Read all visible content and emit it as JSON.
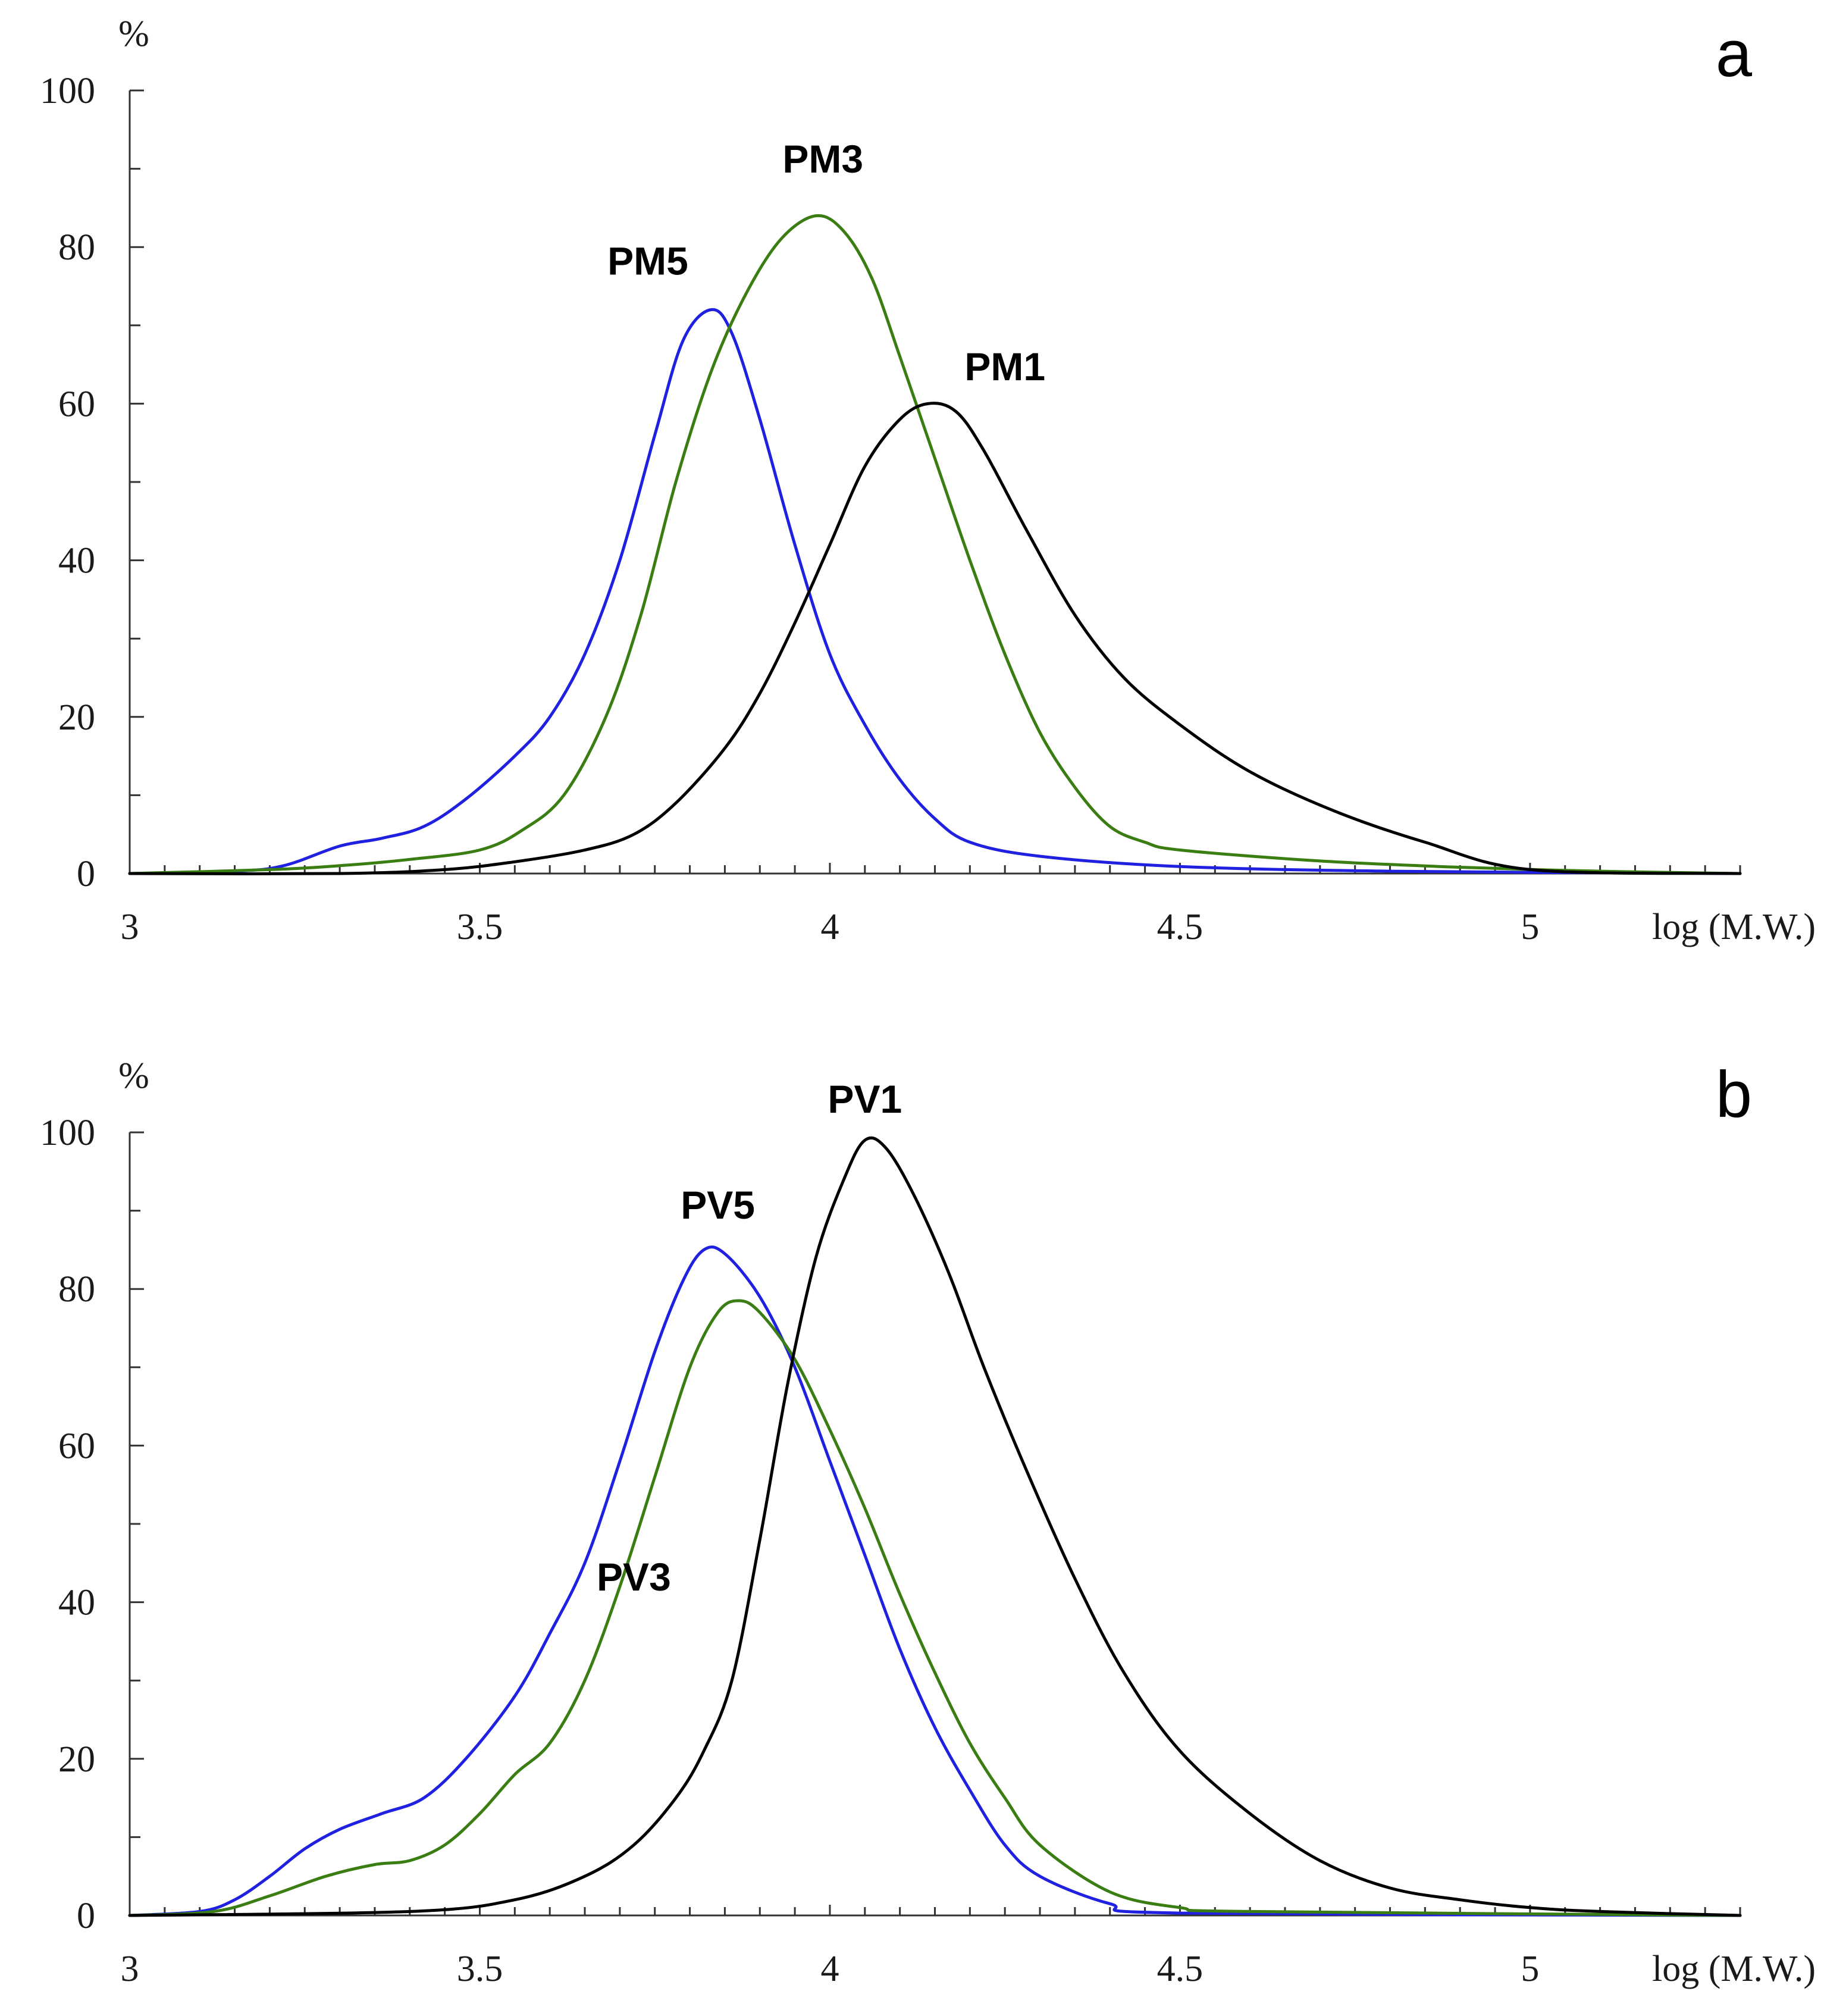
{
  "chart_data": [
    {
      "type": "line",
      "panel": "a",
      "xlabel": "log (M.W.)",
      "ylabel": "%",
      "xlim": [
        3,
        5.3
      ],
      "ylim": [
        0,
        100
      ],
      "x_ticks": [
        "3",
        "3.5",
        "4",
        "4.5",
        "5"
      ],
      "y_ticks": [
        "0",
        "20",
        "40",
        "60",
        "80",
        "100"
      ],
      "series": [
        {
          "name": "PM5",
          "color": "#2020e0",
          "label_at": [
            3.74,
            76.5
          ],
          "points": [
            [
              3.0,
              0
            ],
            [
              3.15,
              0.3
            ],
            [
              3.22,
              1
            ],
            [
              3.3,
              3.5
            ],
            [
              3.36,
              4.5
            ],
            [
              3.42,
              6
            ],
            [
              3.48,
              9.5
            ],
            [
              3.55,
              15
            ],
            [
              3.6,
              20
            ],
            [
              3.65,
              28
            ],
            [
              3.7,
              40
            ],
            [
              3.75,
              56
            ],
            [
              3.79,
              68
            ],
            [
              3.83,
              72
            ],
            [
              3.86,
              69
            ],
            [
              3.9,
              58
            ],
            [
              3.95,
              42
            ],
            [
              4.0,
              28
            ],
            [
              4.05,
              19
            ],
            [
              4.1,
              12
            ],
            [
              4.15,
              7
            ],
            [
              4.2,
              4
            ],
            [
              4.3,
              2.2
            ],
            [
              4.5,
              0.9
            ],
            [
              4.8,
              0.3
            ],
            [
              5.3,
              0
            ]
          ]
        },
        {
          "name": "PM3",
          "color": "#3a7d12",
          "label_at": [
            3.99,
            89.5
          ],
          "points": [
            [
              3.0,
              0
            ],
            [
              3.2,
              0.5
            ],
            [
              3.3,
              1
            ],
            [
              3.4,
              1.8
            ],
            [
              3.5,
              3
            ],
            [
              3.56,
              5.5
            ],
            [
              3.62,
              10
            ],
            [
              3.68,
              20
            ],
            [
              3.73,
              33
            ],
            [
              3.78,
              50
            ],
            [
              3.83,
              64
            ],
            [
              3.88,
              74
            ],
            [
              3.93,
              81
            ],
            [
              3.98,
              84
            ],
            [
              4.02,
              82
            ],
            [
              4.06,
              76
            ],
            [
              4.1,
              66
            ],
            [
              4.15,
              53
            ],
            [
              4.2,
              40
            ],
            [
              4.25,
              28
            ],
            [
              4.3,
              18
            ],
            [
              4.35,
              11
            ],
            [
              4.4,
              6
            ],
            [
              4.45,
              4
            ],
            [
              4.5,
              3
            ],
            [
              4.7,
              1.6
            ],
            [
              4.9,
              0.8
            ],
            [
              5.1,
              0.3
            ],
            [
              5.3,
              0
            ]
          ]
        },
        {
          "name": "PM1",
          "color": "#000000",
          "label_at": [
            4.25,
            63
          ],
          "points": [
            [
              3.0,
              0
            ],
            [
              3.3,
              0
            ],
            [
              3.45,
              0.5
            ],
            [
              3.55,
              1.5
            ],
            [
              3.65,
              3
            ],
            [
              3.72,
              5
            ],
            [
              3.78,
              9
            ],
            [
              3.85,
              16
            ],
            [
              3.9,
              23
            ],
            [
              3.95,
              32
            ],
            [
              4.0,
              42
            ],
            [
              4.05,
              52
            ],
            [
              4.1,
              58
            ],
            [
              4.14,
              60
            ],
            [
              4.18,
              59
            ],
            [
              4.22,
              54
            ],
            [
              4.28,
              44
            ],
            [
              4.35,
              33
            ],
            [
              4.42,
              25
            ],
            [
              4.5,
              19
            ],
            [
              4.6,
              13
            ],
            [
              4.72,
              8
            ],
            [
              4.85,
              4
            ],
            [
              5.0,
              0.5
            ],
            [
              5.3,
              0
            ]
          ]
        }
      ]
    },
    {
      "type": "line",
      "panel": "b",
      "xlabel": "log (M.W.)",
      "ylabel": "%",
      "xlim": [
        3,
        5.3
      ],
      "ylim": [
        0,
        100
      ],
      "x_ticks": [
        "3",
        "3.5",
        "4",
        "4.5",
        "5"
      ],
      "y_ticks": [
        "0",
        "20",
        "40",
        "60",
        "80",
        "100"
      ],
      "series": [
        {
          "name": "PV5",
          "color": "#2020e0",
          "label_at": [
            3.84,
            89
          ],
          "points": [
            [
              3.0,
              0
            ],
            [
              3.1,
              0.5
            ],
            [
              3.15,
              2
            ],
            [
              3.2,
              5
            ],
            [
              3.25,
              8.5
            ],
            [
              3.3,
              11
            ],
            [
              3.36,
              13
            ],
            [
              3.42,
              15
            ],
            [
              3.48,
              20
            ],
            [
              3.55,
              28
            ],
            [
              3.6,
              36
            ],
            [
              3.65,
              45
            ],
            [
              3.7,
              58
            ],
            [
              3.75,
              72
            ],
            [
              3.79,
              81
            ],
            [
              3.82,
              85
            ],
            [
              3.85,
              84.5
            ],
            [
              3.9,
              79
            ],
            [
              3.95,
              70
            ],
            [
              4.0,
              58
            ],
            [
              4.05,
              46
            ],
            [
              4.1,
              34
            ],
            [
              4.15,
              24
            ],
            [
              4.2,
              16
            ],
            [
              4.25,
              9
            ],
            [
              4.3,
              5
            ],
            [
              4.4,
              1.5
            ],
            [
              4.5,
              0.3
            ],
            [
              5.3,
              0
            ]
          ]
        },
        {
          "name": "PV3",
          "color": "#3a7d12",
          "label_at": [
            3.72,
            41.5
          ],
          "points": [
            [
              3.0,
              0
            ],
            [
              3.12,
              0.5
            ],
            [
              3.2,
              2.5
            ],
            [
              3.28,
              5
            ],
            [
              3.35,
              6.5
            ],
            [
              3.4,
              7
            ],
            [
              3.45,
              9
            ],
            [
              3.5,
              13
            ],
            [
              3.55,
              18
            ],
            [
              3.6,
              22
            ],
            [
              3.65,
              30
            ],
            [
              3.7,
              42
            ],
            [
              3.75,
              56
            ],
            [
              3.8,
              70
            ],
            [
              3.84,
              77
            ],
            [
              3.87,
              78.5
            ],
            [
              3.9,
              77
            ],
            [
              3.95,
              71
            ],
            [
              4.0,
              62
            ],
            [
              4.05,
              52
            ],
            [
              4.1,
              41
            ],
            [
              4.15,
              31
            ],
            [
              4.2,
              22
            ],
            [
              4.25,
              15
            ],
            [
              4.3,
              9
            ],
            [
              4.4,
              3
            ],
            [
              4.5,
              1
            ],
            [
              4.6,
              0.5
            ],
            [
              5.3,
              0
            ]
          ]
        },
        {
          "name": "PV1",
          "color": "#000000",
          "label_at": [
            4.05,
            102.5
          ],
          "points": [
            [
              3.0,
              0
            ],
            [
              3.4,
              0.5
            ],
            [
              3.55,
              2
            ],
            [
              3.65,
              5
            ],
            [
              3.72,
              9
            ],
            [
              3.78,
              15
            ],
            [
              3.82,
              21
            ],
            [
              3.86,
              30
            ],
            [
              3.9,
              48
            ],
            [
              3.94,
              68
            ],
            [
              3.98,
              84
            ],
            [
              4.02,
              94
            ],
            [
              4.05,
              99
            ],
            [
              4.08,
              98
            ],
            [
              4.12,
              92
            ],
            [
              4.17,
              82
            ],
            [
              4.22,
              70
            ],
            [
              4.28,
              57
            ],
            [
              4.35,
              43
            ],
            [
              4.42,
              31
            ],
            [
              4.5,
              21
            ],
            [
              4.6,
              13
            ],
            [
              4.7,
              7
            ],
            [
              4.8,
              3.5
            ],
            [
              4.9,
              2
            ],
            [
              5.0,
              1
            ],
            [
              5.1,
              0.5
            ],
            [
              5.3,
              0
            ]
          ]
        }
      ]
    }
  ]
}
